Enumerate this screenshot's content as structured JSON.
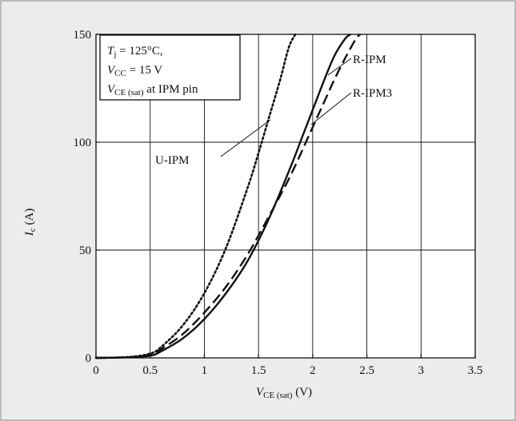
{
  "chart_data": {
    "type": "line",
    "title": "",
    "xlabel": {
      "main": "V",
      "subscript": "CE (sat)",
      "unit": " (V)"
    },
    "ylabel": {
      "main": "I",
      "subscript": "c",
      "unit": " (A)"
    },
    "xlim": [
      0,
      3.5
    ],
    "ylim": [
      0,
      150
    ],
    "x_ticks": [
      "0",
      "0.5",
      "1",
      "1.5",
      "2",
      "2.5",
      "3",
      "3.5"
    ],
    "y_ticks": [
      "0",
      "50",
      "100",
      "150"
    ],
    "grid": true,
    "conditions": {
      "line1": {
        "symbol": "T",
        "subscript": "j",
        "rest": " = 125°C,"
      },
      "line2": {
        "symbol": "V",
        "subscript": "CC",
        "rest": " = 15 V"
      },
      "line3": {
        "symbol": "V",
        "subscript": "CE (sat)",
        "rest": " at IPM pin"
      }
    },
    "series": [
      {
        "name": "U-IPM",
        "style": "dotted",
        "color": "#111111",
        "x": [
          0,
          0.3,
          0.5,
          0.6,
          0.8,
          1.0,
          1.2,
          1.4,
          1.5,
          1.6,
          1.7,
          1.78,
          1.84
        ],
        "y": [
          0,
          0.4,
          2,
          5,
          15,
          30,
          51,
          79,
          95,
          112,
          129,
          144,
          150
        ]
      },
      {
        "name": "R-IPM",
        "style": "solid",
        "color": "#111111",
        "x": [
          0,
          0.3,
          0.5,
          0.6,
          0.8,
          1.0,
          1.2,
          1.4,
          1.6,
          1.8,
          1.9,
          2.0,
          2.1,
          2.2,
          2.3,
          2.35
        ],
        "y": [
          0,
          0.3,
          1,
          3,
          9,
          18,
          30,
          45,
          65,
          89,
          102,
          115,
          128,
          140,
          148,
          150
        ]
      },
      {
        "name": "R-IPM3",
        "style": "dashed",
        "color": "#111111",
        "x": [
          0,
          0.3,
          0.5,
          0.6,
          0.8,
          1.0,
          1.2,
          1.4,
          1.6,
          1.8,
          2.0,
          2.1,
          2.2,
          2.3,
          2.4,
          2.44
        ],
        "y": [
          0,
          0.3,
          1.5,
          4,
          11,
          21,
          33,
          48,
          66,
          85,
          107,
          118,
          129,
          139,
          148,
          150
        ]
      }
    ],
    "annotations": [
      {
        "text": "U-IPM",
        "series": "U-IPM"
      },
      {
        "text": "R-IPM",
        "series": "R-IPM"
      },
      {
        "text": "R-IPM3",
        "series": "R-IPM3"
      }
    ]
  }
}
